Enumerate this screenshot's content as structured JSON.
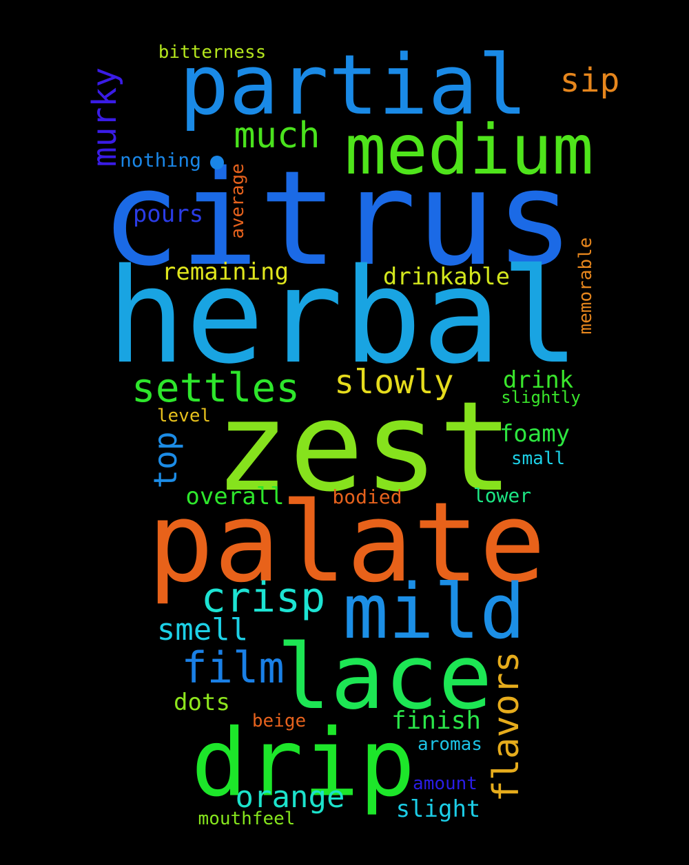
{
  "words": [
    {
      "text": "citrus",
      "color": "#1b6ae6"
    },
    {
      "text": "herbal",
      "color": "#19a4e2"
    },
    {
      "text": "zest",
      "color": "#86e21d"
    },
    {
      "text": "palate",
      "color": "#e8621a"
    },
    {
      "text": "partial",
      "color": "#1a8ae6"
    },
    {
      "text": "medium",
      "color": "#4fe41b"
    },
    {
      "text": "drip",
      "color": "#1de62a"
    },
    {
      "text": "lace",
      "color": "#1de654"
    },
    {
      "text": "mild",
      "color": "#1c8fe6"
    },
    {
      "text": "settles",
      "color": "#2ee62c"
    },
    {
      "text": "crisp",
      "color": "#1de3d3"
    },
    {
      "text": "film",
      "color": "#1a80e6"
    },
    {
      "text": "flavors",
      "color": "#e6ac1c"
    },
    {
      "text": "slowly",
      "color": "#e6dc1d"
    },
    {
      "text": "much",
      "color": "#4ae21d"
    },
    {
      "text": "orange",
      "color": "#1ce2cb"
    },
    {
      "text": "murky",
      "color": "#3a1ce6"
    },
    {
      "text": "sip",
      "color": "#e6861d"
    },
    {
      "text": "top",
      "color": "#1c8ce6"
    },
    {
      "text": "smell",
      "color": "#1dd0e6"
    },
    {
      "text": "drinkable",
      "color": "#d2e61d"
    },
    {
      "text": "remaining",
      "color": "#e0e61d"
    },
    {
      "text": "overall",
      "color": "#2ee62c"
    },
    {
      "text": "finish",
      "color": "#2ae649"
    },
    {
      "text": "slight",
      "color": "#1ccde6"
    },
    {
      "text": "foamy",
      "color": "#2de640"
    },
    {
      "text": "drink",
      "color": "#3ae62c"
    },
    {
      "text": "pours",
      "color": "#2a3ce6"
    },
    {
      "text": "dots",
      "color": "#8ee61d"
    },
    {
      "text": "nothing",
      "color": "#1a86e6"
    },
    {
      "text": "average",
      "color": "#e6621d"
    },
    {
      "text": "memorable",
      "color": "#e6861d"
    },
    {
      "text": "bitterness",
      "color": "#b4e61d"
    },
    {
      "text": "bodied",
      "color": "#e6621d"
    },
    {
      "text": "lower",
      "color": "#1de684"
    },
    {
      "text": "small",
      "color": "#1dd0e6"
    },
    {
      "text": "level",
      "color": "#e6c01d"
    },
    {
      "text": "slightly",
      "color": "#3ae62c"
    },
    {
      "text": "aromas",
      "color": "#1dc4e6"
    },
    {
      "text": "amount",
      "color": "#2a1de6"
    },
    {
      "text": "beige",
      "color": "#e6621d"
    },
    {
      "text": "mouthfeel",
      "color": "#86e61d"
    }
  ]
}
